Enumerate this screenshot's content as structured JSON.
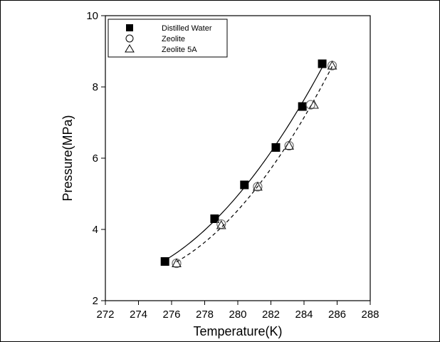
{
  "chart_data": {
    "type": "scatter",
    "title": "",
    "xlabel": "Temperature(K)",
    "ylabel": "Pressure(MPa)",
    "xlim": [
      272,
      288
    ],
    "ylim": [
      2,
      10
    ],
    "xticks": [
      272,
      274,
      276,
      278,
      280,
      282,
      284,
      286,
      288
    ],
    "yticks": [
      2,
      4,
      6,
      8,
      10
    ],
    "xtick_labels": [
      "272",
      "274",
      "276",
      "278",
      "280",
      "282",
      "284",
      "286",
      "288"
    ],
    "ytick_labels": [
      "2",
      "4",
      "6",
      "8",
      "10"
    ],
    "grid": false,
    "legend_position": "top-left",
    "series": [
      {
        "name": "Distilled Water",
        "marker": "filled-square",
        "color": "#000000",
        "x": [
          275.6,
          278.6,
          280.4,
          282.3,
          283.9,
          285.1
        ],
        "y": [
          3.1,
          4.3,
          5.25,
          6.3,
          7.45,
          8.65
        ],
        "fit_line": "solid"
      },
      {
        "name": "Zeolite",
        "marker": "open-circle",
        "color": "#000000",
        "x": [
          276.3,
          279.0,
          281.2,
          283.1,
          284.4,
          285.7
        ],
        "y": [
          3.05,
          4.15,
          5.2,
          6.35,
          7.5,
          8.6
        ],
        "fit_line": "dashed"
      },
      {
        "name": "Zeolite 5A",
        "marker": "open-triangle",
        "color": "#000000",
        "x": [
          276.3,
          279.0,
          281.2,
          283.1,
          284.6,
          285.7
        ],
        "y": [
          3.05,
          4.12,
          5.2,
          6.35,
          7.5,
          8.6
        ],
        "fit_line": null
      }
    ]
  }
}
